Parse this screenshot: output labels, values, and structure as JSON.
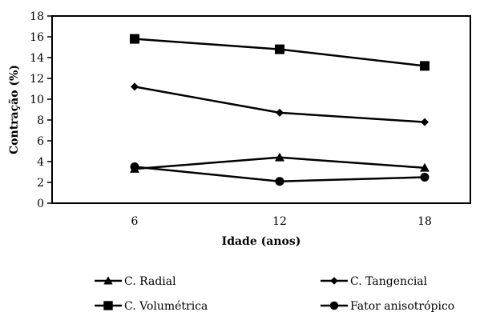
{
  "chart_data": {
    "type": "line",
    "title": "",
    "xlabel": "Idade (anos)",
    "ylabel": "Contração (%)",
    "x": [
      6,
      12,
      18
    ],
    "x_tick_labels": [
      "6",
      "12",
      "18"
    ],
    "ylim": [
      0,
      18
    ],
    "y_ticks": [
      0,
      2,
      4,
      6,
      8,
      10,
      12,
      14,
      16,
      18
    ],
    "grid": false,
    "legend_position": "bottom",
    "series": [
      {
        "name": "C. Radial",
        "marker": "triangle",
        "values": [
          3.3,
          4.4,
          3.4
        ]
      },
      {
        "name": "C. Tangencial",
        "marker": "diamond",
        "values": [
          11.2,
          8.7,
          7.8
        ]
      },
      {
        "name": "C. Volumétrica",
        "marker": "square",
        "values": [
          15.8,
          14.8,
          13.2
        ]
      },
      {
        "name": "Fator anisotrópico",
        "marker": "circle",
        "values": [
          3.5,
          2.1,
          2.5
        ]
      }
    ],
    "line_color": "#000000"
  }
}
